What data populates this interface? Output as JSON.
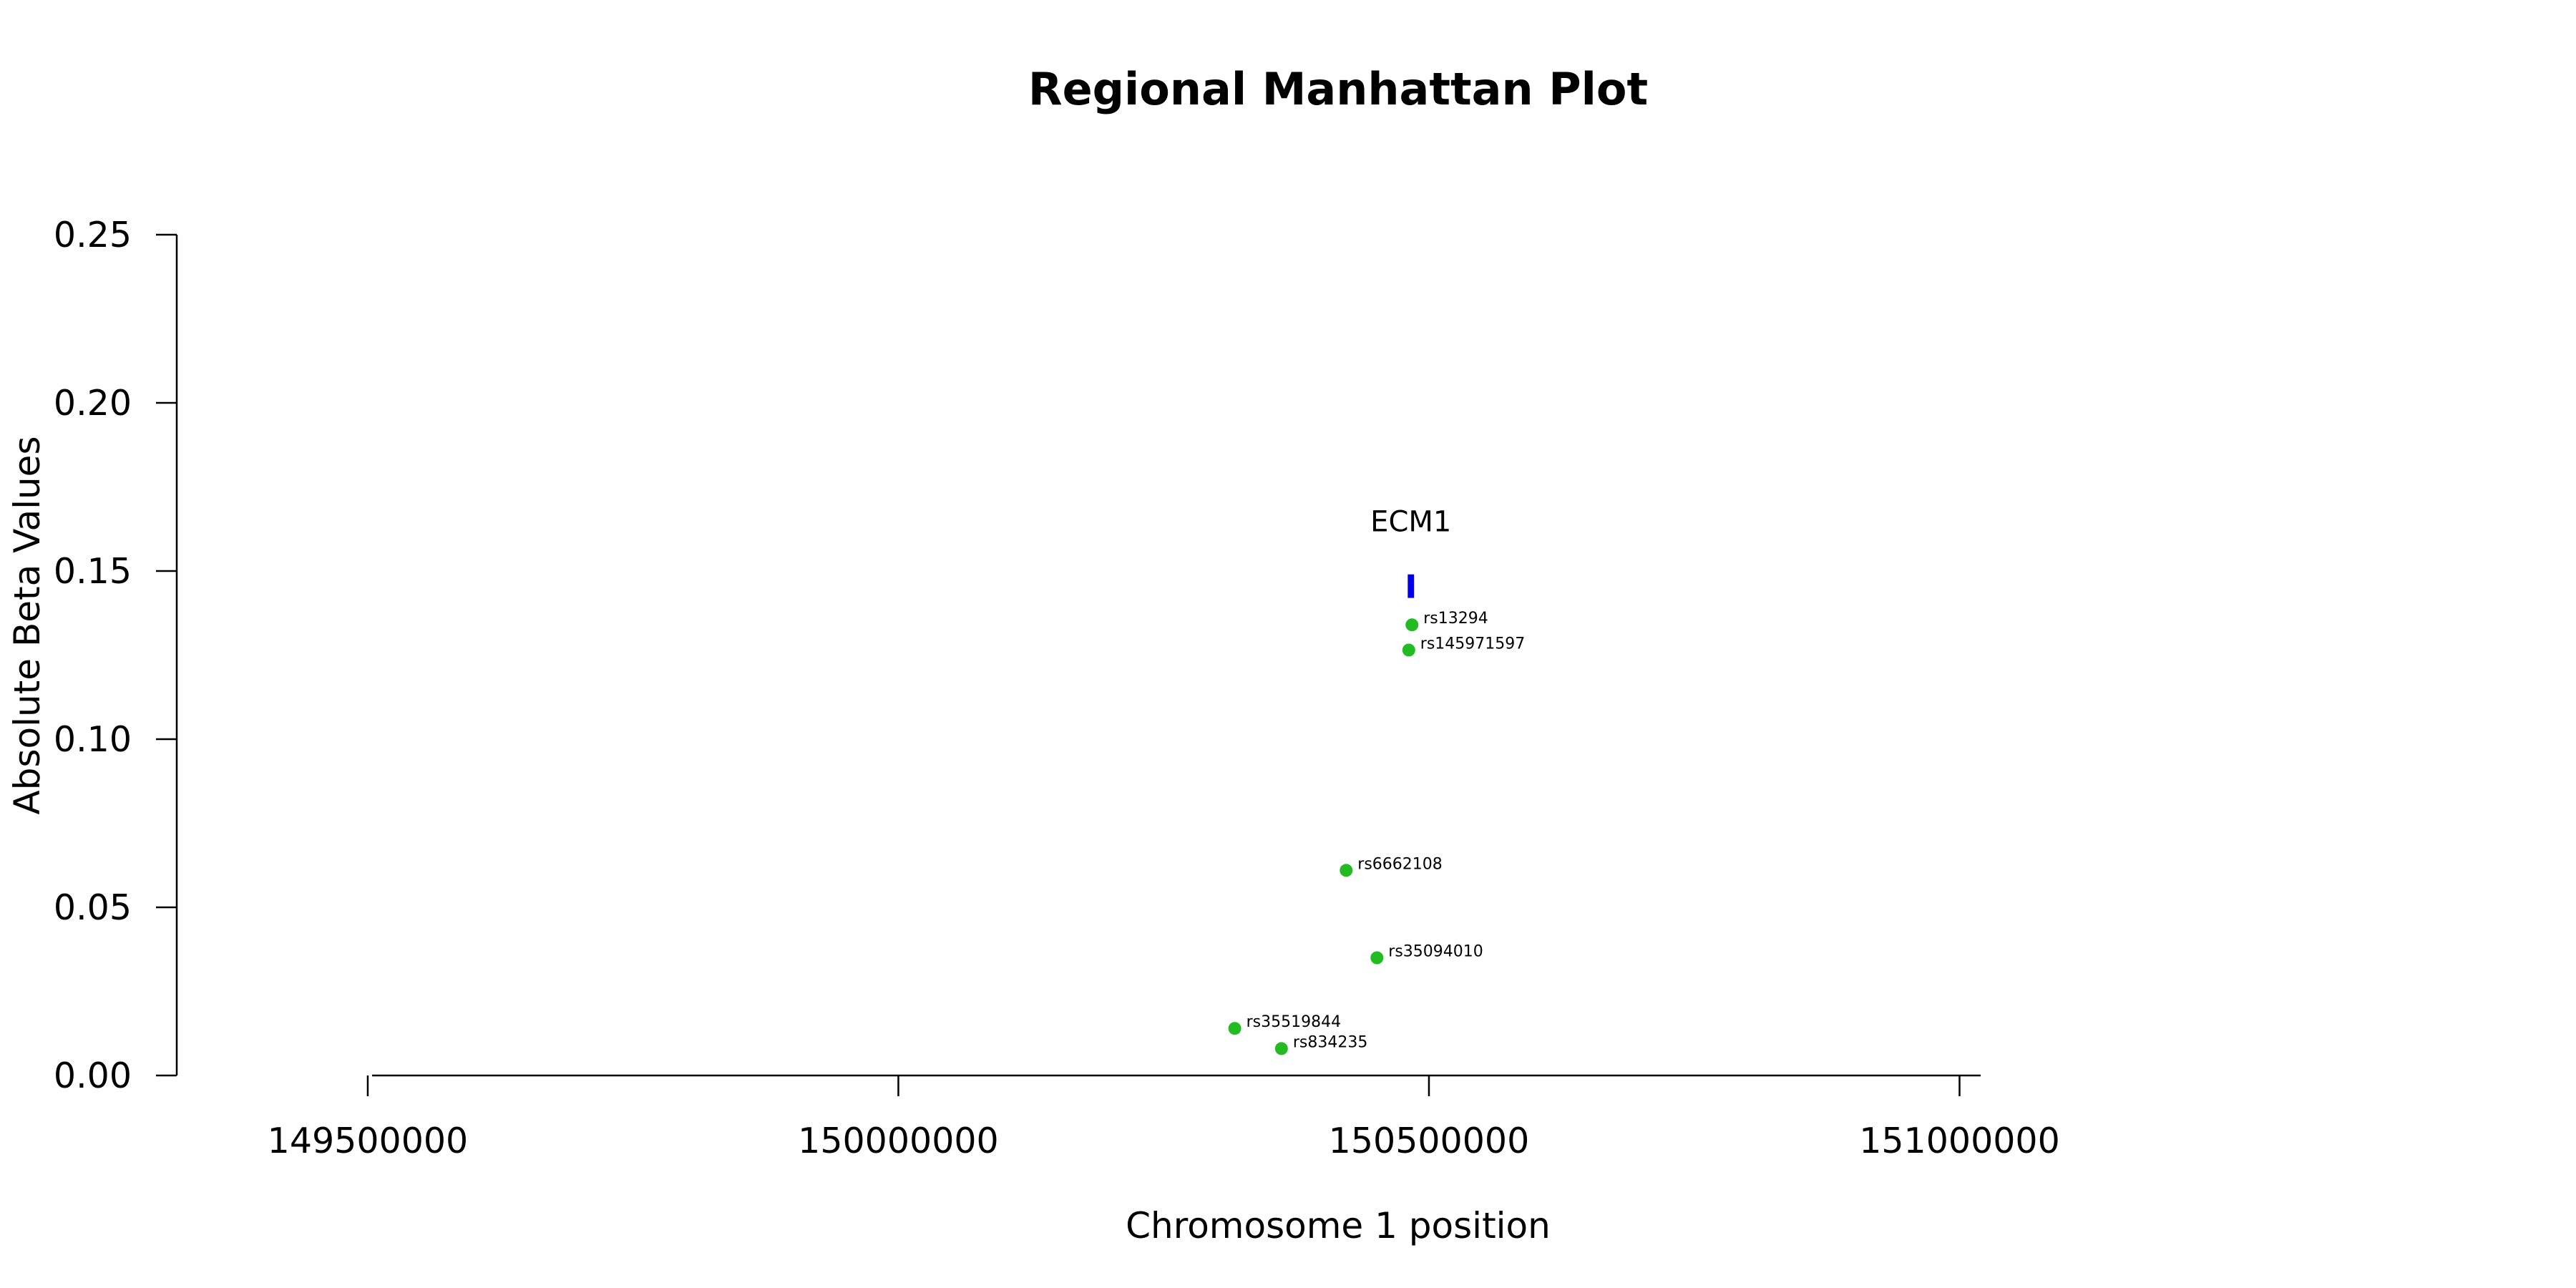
{
  "chart_data": {
    "type": "scatter",
    "title": "Regional Manhattan Plot",
    "xlabel": "Chromosome 1 position",
    "ylabel": "Absolute Beta Values",
    "xlim": [
      149320000,
      151500000
    ],
    "ylim": [
      0,
      0.25
    ],
    "xticks": [
      149500000,
      150000000,
      150500000,
      151000000
    ],
    "xtick_labels": [
      "149500000",
      "150000000",
      "150500000",
      "151000000"
    ],
    "yticks": [
      0.0,
      0.05,
      0.1,
      0.15,
      0.2,
      0.25
    ],
    "ytick_labels": [
      "0.00",
      "0.05",
      "0.10",
      "0.15",
      "0.20",
      "0.25"
    ],
    "grid": false,
    "point_color": "#22bb22",
    "gene_color": "#0000ee",
    "points": [
      {
        "label": "rs13294",
        "x": 150484000,
        "y": 0.134
      },
      {
        "label": "rs145971597",
        "x": 150481000,
        "y": 0.1265
      },
      {
        "label": "rs6662108",
        "x": 150422000,
        "y": 0.061
      },
      {
        "label": "rs35094010",
        "x": 150451000,
        "y": 0.035
      },
      {
        "label": "rs35519844",
        "x": 150317000,
        "y": 0.014
      },
      {
        "label": "rs834235",
        "x": 150361000,
        "y": 0.008
      }
    ],
    "genes": [
      {
        "name": "ECM1",
        "start": 150480000,
        "end": 150486000,
        "y_low": 0.142,
        "y_high": 0.149
      }
    ]
  }
}
